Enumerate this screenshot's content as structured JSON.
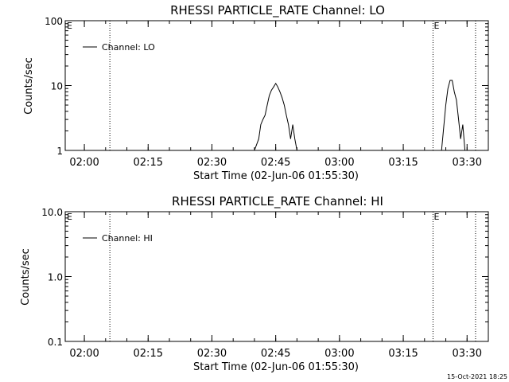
{
  "timestamp": "15-Oct-2021 18:25",
  "colors": {
    "background": "#ffffff",
    "ink": "#000000"
  },
  "chart_data": [
    {
      "type": "line",
      "title": "RHESSI PARTICLE_RATE Channel: LO",
      "xlabel": "Start Time (02-Jun-06 01:55:30)",
      "ylabel": "Counts/sec",
      "y_scale": "log",
      "ylim": [
        1,
        100
      ],
      "xlim": [
        "01:55:30",
        "03:35:00"
      ],
      "x_ticks": [
        "02:00",
        "02:15",
        "02:30",
        "02:45",
        "03:00",
        "03:15",
        "03:30"
      ],
      "y_ticks": [
        "1",
        "10",
        "100"
      ],
      "legend": "top-left",
      "grid": false,
      "flags": [
        {
          "time": "02:06:00",
          "label": ""
        },
        {
          "time": "03:22:00",
          "label": "E"
        },
        {
          "time": "03:32:00",
          "label": ""
        }
      ],
      "corner_label": "E",
      "series": [
        {
          "name": "Channel: LO",
          "x": [
            "02:40:00",
            "02:41:00",
            "02:41:30",
            "02:42:00",
            "02:42:30",
            "02:43:00",
            "02:43:30",
            "02:44:00",
            "02:44:30",
            "02:45:00",
            "02:45:30",
            "02:46:00",
            "02:46:30",
            "02:47:00",
            "02:47:30",
            "02:48:00",
            "02:48:30",
            "02:49:00",
            "02:49:30",
            "02:50:00"
          ],
          "y": [
            1,
            1.5,
            2.5,
            3,
            3.5,
            5,
            7,
            8.5,
            9.5,
            10.8,
            9.5,
            8,
            6.5,
            5,
            3.5,
            2.5,
            1.5,
            2.5,
            1.5,
            1
          ],
          "x2": [
            "03:24:00",
            "03:25:00",
            "03:25:30",
            "03:26:00",
            "03:26:30",
            "03:27:00",
            "03:27:30",
            "03:28:00",
            "03:28:30",
            "03:29:00",
            "03:29:30"
          ],
          "y2": [
            1,
            5,
            9,
            12,
            12,
            8,
            6,
            3,
            1.5,
            2.5,
            1
          ]
        }
      ]
    },
    {
      "type": "line",
      "title": "RHESSI PARTICLE_RATE Channel: HI",
      "xlabel": "Start Time (02-Jun-06 01:55:30)",
      "ylabel": "Counts/sec",
      "y_scale": "log",
      "ylim": [
        0.1,
        10
      ],
      "xlim": [
        "01:55:30",
        "03:35:00"
      ],
      "x_ticks": [
        "02:00",
        "02:15",
        "02:30",
        "02:45",
        "03:00",
        "03:15",
        "03:30"
      ],
      "y_ticks": [
        "0.1",
        "1.0",
        "10.0"
      ],
      "legend": "top-left",
      "grid": false,
      "flags": [
        {
          "time": "02:06:00",
          "label": ""
        },
        {
          "time": "03:22:00",
          "label": "E"
        },
        {
          "time": "03:32:00",
          "label": ""
        }
      ],
      "corner_label": "E",
      "series": [
        {
          "name": "Channel: HI",
          "x": [],
          "y": []
        }
      ]
    }
  ]
}
